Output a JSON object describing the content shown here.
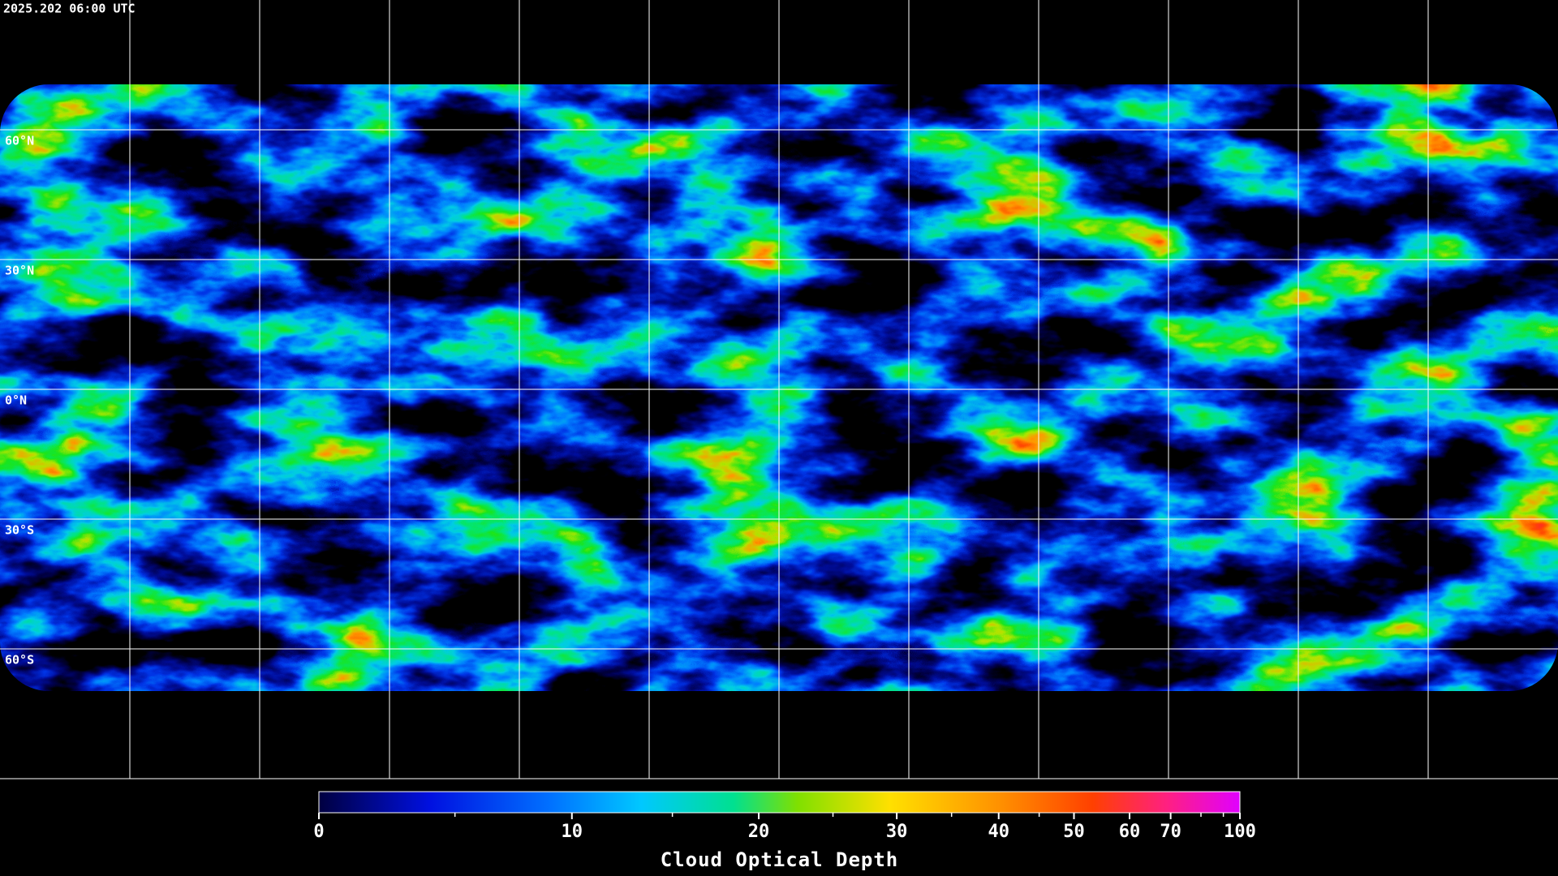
{
  "header": {
    "timestamp": "2025.202 06:00 UTC"
  },
  "map": {
    "latitudes": [
      {
        "value": 60,
        "label": "60°N"
      },
      {
        "value": 30,
        "label": "30°N"
      },
      {
        "value": 0,
        "label": "0°N"
      },
      {
        "value": -30,
        "label": "30°S"
      },
      {
        "value": -60,
        "label": "60°S"
      }
    ]
  },
  "colorbar": {
    "title": "Cloud Optical Depth",
    "lim": [
      0,
      100
    ],
    "ticks": [
      0,
      10,
      20,
      30,
      40,
      50,
      60,
      70,
      100
    ],
    "minor_ticks": [
      5,
      15,
      25,
      35,
      45,
      80,
      90
    ]
  }
}
